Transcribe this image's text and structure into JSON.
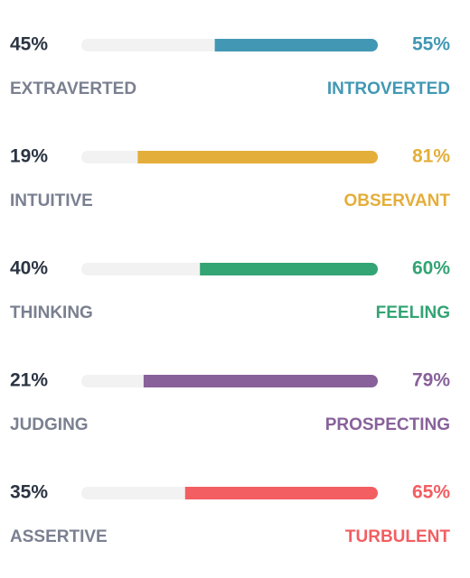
{
  "traits": [
    {
      "left": {
        "name": "EXTRAVERTED",
        "value": 45,
        "value_label": "45%"
      },
      "right": {
        "name": "INTROVERTED",
        "value": 55,
        "value_label": "55%",
        "color": "#4298b4"
      }
    },
    {
      "left": {
        "name": "INTUITIVE",
        "value": 19,
        "value_label": "19%"
      },
      "right": {
        "name": "OBSERVANT",
        "value": 81,
        "value_label": "81%",
        "color": "#e4ae3a"
      }
    },
    {
      "left": {
        "name": "THINKING",
        "value": 40,
        "value_label": "40%"
      },
      "right": {
        "name": "FEELING",
        "value": 60,
        "value_label": "60%",
        "color": "#33a474"
      }
    },
    {
      "left": {
        "name": "JUDGING",
        "value": 21,
        "value_label": "21%"
      },
      "right": {
        "name": "PROSPECTING",
        "value": 79,
        "value_label": "79%",
        "color": "#88619a"
      }
    },
    {
      "left": {
        "name": "ASSERTIVE",
        "value": 35,
        "value_label": "35%"
      },
      "right": {
        "name": "TURBULENT",
        "value": 65,
        "value_label": "65%",
        "color": "#f25e62"
      }
    }
  ]
}
